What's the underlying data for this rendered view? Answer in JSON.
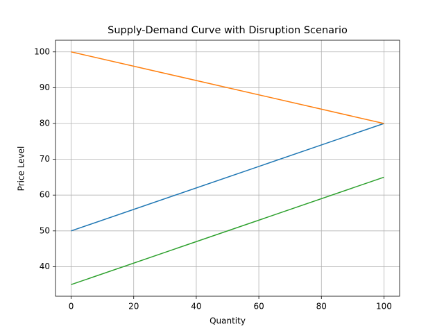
{
  "chart_data": {
    "type": "line",
    "title": "Supply-Demand Curve with Disruption Scenario",
    "x_label": "Quantity",
    "y_label": "Price Level",
    "x": [
      0,
      100
    ],
    "series": [
      {
        "color": "#1f77b4",
        "values": [
          50,
          80
        ]
      },
      {
        "color": "#ff7f0e",
        "values": [
          100,
          80
        ]
      },
      {
        "color": "#2ca02c",
        "values": [
          35,
          65
        ]
      }
    ],
    "xlim": [
      -5,
      105
    ],
    "xticks": [
      0,
      20,
      40,
      60,
      80,
      100
    ],
    "ylim": [
      31.75,
      103.25
    ],
    "yticks": [
      40,
      50,
      60,
      70,
      80,
      90,
      100
    ],
    "grid": true
  }
}
